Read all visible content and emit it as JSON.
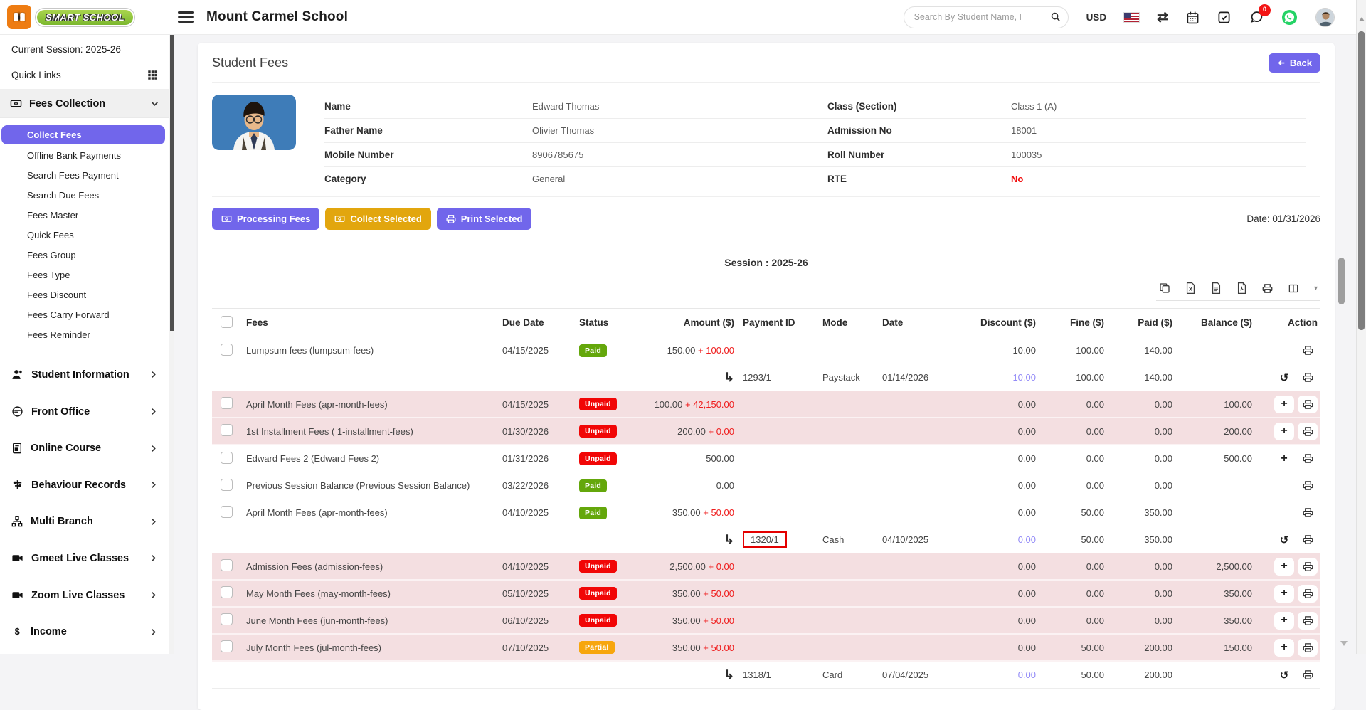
{
  "topbar": {
    "logo_text": "SMART SCHOOL",
    "school_name": "Mount Carmel School",
    "search_placeholder": "Search By Student Name, I",
    "currency": "USD",
    "messages_badge": "0"
  },
  "sidebar": {
    "session_label": "Current Session: 2025-26",
    "quick_links_label": "Quick Links",
    "fees_collection": {
      "label": "Fees Collection",
      "items": [
        {
          "label": "Collect Fees",
          "active": true
        },
        {
          "label": "Offline Bank Payments",
          "active": false
        },
        {
          "label": "Search Fees Payment",
          "active": false
        },
        {
          "label": "Search Due Fees",
          "active": false
        },
        {
          "label": "Fees Master",
          "active": false
        },
        {
          "label": "Quick Fees",
          "active": false
        },
        {
          "label": "Fees Group",
          "active": false
        },
        {
          "label": "Fees Type",
          "active": false
        },
        {
          "label": "Fees Discount",
          "active": false
        },
        {
          "label": "Fees Carry Forward",
          "active": false
        },
        {
          "label": "Fees Reminder",
          "active": false
        }
      ]
    },
    "sections": [
      {
        "label": "Student Information",
        "icon": "student-information"
      },
      {
        "label": "Front Office",
        "icon": "front-office"
      },
      {
        "label": "Online Course",
        "icon": "online-course"
      },
      {
        "label": "Behaviour Records",
        "icon": "behaviour-records"
      },
      {
        "label": "Multi Branch",
        "icon": "multi-branch"
      },
      {
        "label": "Gmeet Live Classes",
        "icon": "video"
      },
      {
        "label": "Zoom Live Classes",
        "icon": "video"
      },
      {
        "label": "Income",
        "icon": "dollar"
      }
    ]
  },
  "page": {
    "title": "Student Fees",
    "back_label": "Back",
    "student_info": {
      "rows": [
        {
          "l1": "Name",
          "v1": "Edward Thomas",
          "l2": "Class (Section)",
          "v2": "Class 1 (A)",
          "v2_red": false
        },
        {
          "l1": "Father Name",
          "v1": "Olivier Thomas",
          "l2": "Admission No",
          "v2": "18001",
          "v2_red": false
        },
        {
          "l1": "Mobile Number",
          "v1": "8906785675",
          "l2": "Roll Number",
          "v2": "100035",
          "v2_red": false
        },
        {
          "l1": "Category",
          "v1": "General",
          "l2": "RTE",
          "v2": "No",
          "v2_red": true
        }
      ]
    },
    "buttons": [
      {
        "id": "print-selected",
        "label": "Print Selected",
        "style": "purple",
        "icon": "printer"
      },
      {
        "id": "collect-selected",
        "label": "Collect Selected",
        "style": "yellow",
        "icon": "money"
      },
      {
        "id": "processing-fees",
        "label": "Processing Fees",
        "style": "purple",
        "icon": "money"
      }
    ],
    "date_label": "Date: 01/31/2026",
    "session_heading": "Session : 2025-26",
    "export_icons": [
      "copy",
      "excel-file",
      "csv-file",
      "pdf-file",
      "printer-dark",
      "columns"
    ]
  },
  "table": {
    "headers": [
      "Fees",
      "Due Date",
      "Status",
      "Amount ($)",
      "Payment ID",
      "Mode",
      "Date",
      "Discount ($)",
      "Fine ($)",
      "Paid ($)",
      "Balance ($)",
      "Action"
    ],
    "status_colors": {
      "Paid": "#64a70b",
      "Unpaid": "#f10606",
      "Partial": "#f7a60d"
    },
    "rows": [
      {
        "type": "main",
        "pink": false,
        "fee": "Lumpsum fees (lumpsum-fees)",
        "due": "04/15/2025",
        "status": "Paid",
        "amount": "150.00",
        "amount_extra": "100.00",
        "discount": "10.00",
        "fine": "100.00",
        "paid": "140.00",
        "balance": "",
        "actions": [
          "print"
        ]
      },
      {
        "type": "sub",
        "payment_id": "1293/1",
        "highlight": false,
        "mode": "Paystack",
        "pay_date": "01/14/2026",
        "discount": "10.00",
        "fine": "100.00",
        "paid": "140.00",
        "balance": "",
        "actions": [
          "revert",
          "print"
        ]
      },
      {
        "type": "main",
        "pink": true,
        "fee": "April Month Fees (apr-month-fees)",
        "due": "04/15/2025",
        "status": "Unpaid",
        "amount": "100.00",
        "amount_extra": "42,150.00",
        "discount": "0.00",
        "fine": "0.00",
        "paid": "0.00",
        "balance": "100.00",
        "actions": [
          "add",
          "print"
        ]
      },
      {
        "type": "main",
        "pink": true,
        "fee": "1st Installment Fees ( 1-installment-fees)",
        "due": "01/30/2026",
        "status": "Unpaid",
        "amount": "200.00",
        "amount_extra": "0.00",
        "discount": "0.00",
        "fine": "0.00",
        "paid": "0.00",
        "balance": "200.00",
        "actions": [
          "add",
          "print"
        ]
      },
      {
        "type": "main",
        "pink": false,
        "fee": "Edward Fees 2 (Edward Fees 2)",
        "due": "01/31/2026",
        "status": "Unpaid",
        "amount": "500.00",
        "amount_extra": "",
        "discount": "0.00",
        "fine": "0.00",
        "paid": "0.00",
        "balance": "500.00",
        "actions": [
          "add",
          "print"
        ]
      },
      {
        "type": "main",
        "pink": false,
        "fee": "Previous Session Balance (Previous Session Balance)",
        "due": "03/22/2026",
        "status": "Paid",
        "amount": "0.00",
        "amount_extra": "",
        "discount": "0.00",
        "fine": "0.00",
        "paid": "0.00",
        "balance": "",
        "actions": [
          "print"
        ]
      },
      {
        "type": "main",
        "pink": false,
        "fee": "April Month Fees (apr-month-fees)",
        "due": "04/10/2025",
        "status": "Paid",
        "amount": "350.00",
        "amount_extra": "50.00",
        "discount": "0.00",
        "fine": "50.00",
        "paid": "350.00",
        "balance": "",
        "actions": [
          "print"
        ]
      },
      {
        "type": "sub",
        "payment_id": "1320/1",
        "highlight": true,
        "mode": "Cash",
        "pay_date": "04/10/2025",
        "discount": "0.00",
        "fine": "50.00",
        "paid": "350.00",
        "balance": "",
        "actions": [
          "revert",
          "print"
        ]
      },
      {
        "type": "main",
        "pink": true,
        "fee": "Admission Fees (admission-fees)",
        "due": "04/10/2025",
        "status": "Unpaid",
        "amount": "2,500.00",
        "amount_extra": "0.00",
        "discount": "0.00",
        "fine": "0.00",
        "paid": "0.00",
        "balance": "2,500.00",
        "actions": [
          "add",
          "print"
        ]
      },
      {
        "type": "main",
        "pink": true,
        "fee": "May Month Fees (may-month-fees)",
        "due": "05/10/2025",
        "status": "Unpaid",
        "amount": "350.00",
        "amount_extra": "50.00",
        "discount": "0.00",
        "fine": "0.00",
        "paid": "0.00",
        "balance": "350.00",
        "actions": [
          "add",
          "print"
        ]
      },
      {
        "type": "main",
        "pink": true,
        "fee": "June Month Fees (jun-month-fees)",
        "due": "06/10/2025",
        "status": "Unpaid",
        "amount": "350.00",
        "amount_extra": "50.00",
        "discount": "0.00",
        "fine": "0.00",
        "paid": "0.00",
        "balance": "350.00",
        "actions": [
          "add",
          "print"
        ]
      },
      {
        "type": "main",
        "pink": true,
        "fee": "July Month Fees (jul-month-fees)",
        "due": "07/10/2025",
        "status": "Partial",
        "amount": "350.00",
        "amount_extra": "50.00",
        "discount": "0.00",
        "fine": "50.00",
        "paid": "200.00",
        "balance": "150.00",
        "actions": [
          "add",
          "print"
        ]
      },
      {
        "type": "sub",
        "payment_id": "1318/1",
        "highlight": false,
        "mode": "Card",
        "pay_date": "07/04/2025",
        "discount": "0.00",
        "fine": "50.00",
        "paid": "200.00",
        "balance": "",
        "actions": [
          "revert",
          "print"
        ]
      }
    ]
  },
  "colors": {
    "accent_purple": "#7166eb",
    "accent_yellow": "#e2a60e",
    "paid_green": "#64a70b",
    "unpaid_red": "#f10606",
    "partial_orange": "#f7a60d",
    "pink_row": "#f4dfe1",
    "fine_red": "#ef1d1d",
    "discount_link": "#938bf7",
    "highlight_box_red": "#e40000"
  }
}
